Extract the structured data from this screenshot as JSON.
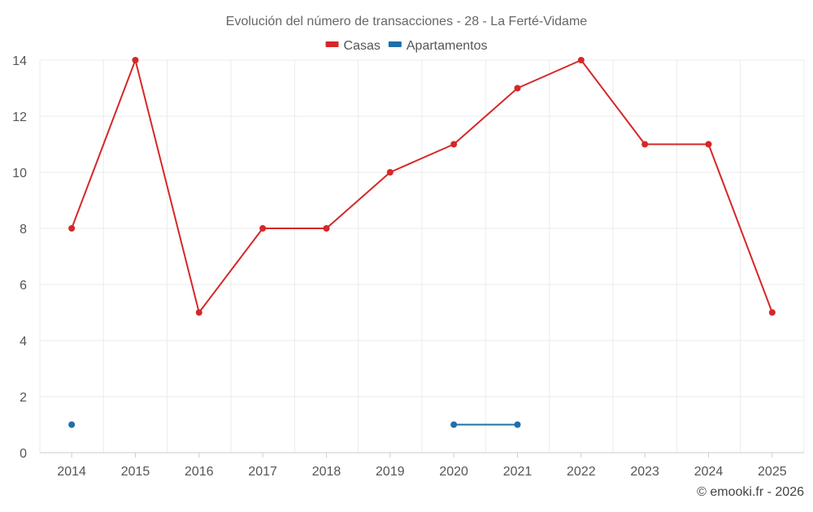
{
  "title": "Evolución del número de transacciones - 28 - La Ferté-Vidame",
  "credit": "© emooki.fr - 2026",
  "chart_data": {
    "type": "line",
    "title": "Evolución del número de transacciones - 28 - La Ferté-Vidame",
    "xlabel": "",
    "ylabel": "",
    "categories": [
      "2014",
      "2015",
      "2016",
      "2017",
      "2018",
      "2019",
      "2020",
      "2021",
      "2022",
      "2023",
      "2024",
      "2025"
    ],
    "ylim": [
      0,
      14
    ],
    "yticks": [
      0,
      2,
      4,
      6,
      8,
      10,
      12,
      14
    ],
    "grid": true,
    "legend_position": "top-center",
    "series": [
      {
        "name": "Casas",
        "color": "#d62728",
        "values": [
          8,
          14,
          5,
          8,
          8,
          10,
          11,
          13,
          14,
          11,
          11,
          5
        ]
      },
      {
        "name": "Apartamentos",
        "color": "#1f6fa8",
        "values": [
          1,
          null,
          null,
          null,
          null,
          null,
          1,
          1,
          null,
          null,
          null,
          null
        ]
      }
    ]
  }
}
